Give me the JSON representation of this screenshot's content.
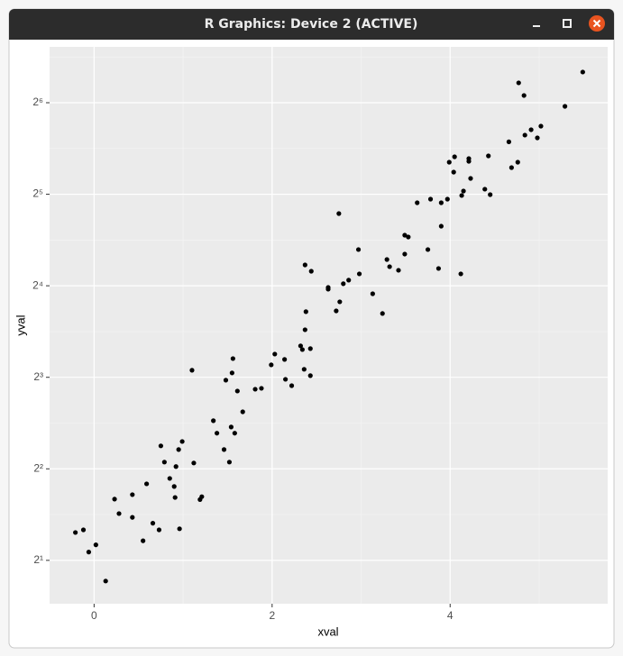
{
  "window": {
    "title": "R Graphics: Device 2 (ACTIVE)"
  },
  "chart_data": {
    "type": "scatter",
    "x_label": "xval",
    "y_label": "yval",
    "color": "#000000",
    "grid": true,
    "y_scale": "log2",
    "xlim": [
      -0.5,
      5.77
    ],
    "ylim": [
      1.44,
      97.7
    ],
    "xticks": [
      0,
      2,
      4
    ],
    "yticks": [
      {
        "value": 2,
        "label": "2¹"
      },
      {
        "value": 4,
        "label": "2²"
      },
      {
        "value": 8,
        "label": "2³"
      },
      {
        "value": 16,
        "label": "2⁴"
      },
      {
        "value": 32,
        "label": "2⁵"
      },
      {
        "value": 64,
        "label": "2⁶"
      }
    ],
    "x": [
      -0.21,
      -0.12,
      -0.06,
      0.02,
      0.13,
      0.23,
      0.28,
      0.43,
      0.43,
      0.55,
      0.59,
      0.66,
      0.73,
      0.75,
      0.79,
      0.85,
      0.9,
      0.91,
      0.92,
      0.95,
      0.96,
      0.99,
      1.1,
      1.12,
      1.19,
      1.21,
      1.34,
      1.38,
      1.46,
      1.48,
      1.52,
      1.55,
      1.54,
      1.56,
      1.58,
      1.61,
      1.67,
      1.81,
      1.88,
      1.99,
      2.03,
      2.14,
      2.15,
      2.22,
      2.32,
      2.34,
      2.36,
      2.37,
      2.38,
      2.37,
      2.43,
      2.43,
      2.44,
      2.63,
      2.63,
      2.72,
      2.75,
      2.76,
      2.8,
      2.86,
      2.97,
      2.98,
      3.13,
      3.24,
      3.29,
      3.32,
      3.42,
      3.49,
      3.49,
      3.53,
      3.63,
      3.75,
      3.78,
      3.87,
      3.9,
      3.9,
      3.97,
      3.99,
      4.04,
      4.05,
      4.12,
      4.13,
      4.15,
      4.21,
      4.21,
      4.23,
      4.39,
      4.43,
      4.45,
      4.66,
      4.69,
      4.76,
      4.77,
      4.83,
      4.84,
      4.91,
      4.98,
      5.02,
      5.29,
      5.49
    ],
    "values": [
      2.47,
      2.52,
      2.13,
      2.25,
      1.71,
      3.18,
      2.85,
      3.29,
      2.77,
      2.32,
      3.57,
      2.65,
      2.52,
      4.76,
      4.21,
      3.72,
      3.5,
      3.22,
      4.07,
      4.63,
      2.54,
      4.92,
      8.44,
      4.18,
      3.17,
      3.24,
      5.76,
      5.24,
      4.63,
      7.83,
      4.21,
      8.27,
      5.49,
      9.22,
      5.24,
      7.21,
      6.16,
      7.31,
      7.36,
      8.79,
      9.54,
      9.16,
      7.88,
      7.51,
      10.15,
      9.87,
      8.5,
      11.47,
      13.15,
      18.74,
      9.94,
      8.1,
      17.86,
      15.8,
      15.59,
      13.23,
      27.65,
      14.17,
      16.25,
      16.7,
      21.05,
      17.51,
      15.06,
      12.97,
      19.52,
      18.49,
      17.99,
      20.34,
      23.47,
      23.15,
      30.0,
      21.05,
      30.84,
      18.24,
      30.0,
      25.12,
      30.84,
      40.79,
      37.84,
      42.49,
      17.51,
      31.7,
      32.79,
      41.93,
      41.07,
      36.07,
      33.25,
      42.78,
      31.91,
      47.6,
      39.15,
      40.79,
      74.4,
      67.6,
      50.07,
      52.16,
      49.04,
      53.59,
      62.28,
      80.73
    ]
  }
}
